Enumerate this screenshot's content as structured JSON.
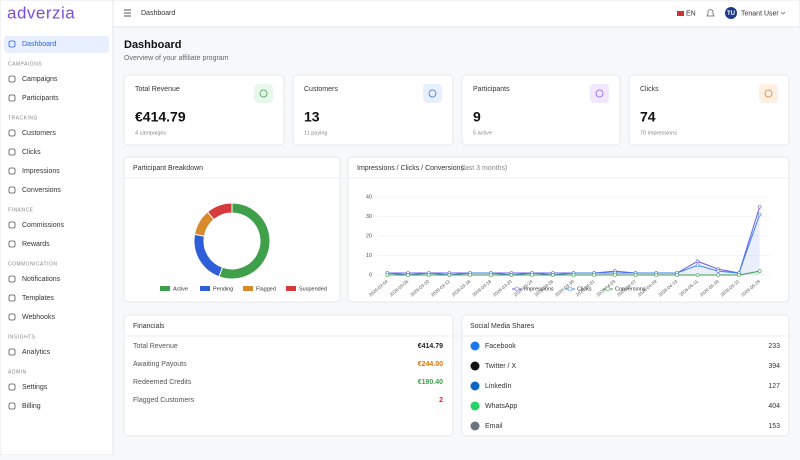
{
  "sidebar": {
    "logo": "adverzia",
    "sections": [
      {
        "items": [
          "Dashboard"
        ]
      },
      {
        "label": "CAMPAIGNS",
        "items": [
          "Campaigns",
          "Participants"
        ]
      },
      {
        "label": "TRACKING",
        "items": [
          "Customers",
          "Clicks",
          "Impressions",
          "Conversions"
        ]
      },
      {
        "label": "FINANCE",
        "items": [
          "Commissions",
          "Rewards"
        ]
      },
      {
        "label": "COMMUNICATION",
        "items": [
          "Notifications",
          "Templates",
          "Webhooks"
        ]
      },
      {
        "label": "INSIGHTS",
        "items": [
          "Analytics"
        ]
      },
      {
        "label": "ADMIN",
        "items": [
          "Settings",
          "Billing"
        ]
      }
    ]
  },
  "header": {
    "breadcrumb": "Dashboard",
    "language": "EN",
    "avatar": "TU",
    "user": "Tenant User"
  },
  "page": {
    "title": "Dashboard",
    "subtitle": "Overview of your affiliate program"
  },
  "cards": [
    {
      "label": "Total Revenue",
      "value": "€414.79",
      "note": "4 campaigns"
    },
    {
      "label": "Customers",
      "value": "13",
      "note": "11 paying"
    },
    {
      "label": "Participants",
      "value": "9",
      "note": "5 active"
    },
    {
      "label": "Clicks",
      "value": "74",
      "note": "70 impressions"
    }
  ],
  "chart_data": [
    {
      "type": "donut",
      "title": "Participant Breakdown",
      "categories": [
        "Active",
        "Pending",
        "Flagged",
        "Suspended"
      ],
      "values": [
        5,
        2,
        1,
        1
      ],
      "colors": [
        "#3f9f4a",
        "#2f5fd8",
        "#d98a2b",
        "#d63a3a"
      ],
      "legend": "bottom"
    },
    {
      "type": "line",
      "title": "Impressions / Clicks / Conversions",
      "subtitle": "(last 3 months)",
      "categories": [
        "2026-03-04",
        "2026-03-06",
        "2026-03-10",
        "2026-03-12",
        "2026-03-16",
        "2026-03-18",
        "2026-03-20",
        "2026-03-24",
        "2026-03-26",
        "2026-03-30",
        "2026-04-01",
        "2026-04-03",
        "2026-04-07",
        "2026-04-09",
        "2026-04-13",
        "2026-05-11",
        "2026-05-18",
        "2026-05-22",
        "2026-05-29"
      ],
      "series": [
        {
          "name": "Impressions",
          "color": "#6d5ce8",
          "values": [
            1,
            1,
            1,
            1,
            1,
            1,
            1,
            1,
            1,
            1,
            1,
            2,
            1,
            1,
            1,
            7,
            3,
            1,
            35
          ]
        },
        {
          "name": "Clicks",
          "color": "#3b82f6",
          "values": [
            1,
            0,
            1,
            0,
            1,
            1,
            0,
            1,
            0,
            1,
            1,
            1,
            1,
            1,
            1,
            5,
            2,
            1,
            31
          ]
        },
        {
          "name": "Conversions",
          "color": "#3f9f4a",
          "values": [
            0,
            0,
            0,
            0,
            0,
            0,
            0,
            0,
            0,
            0,
            0,
            0,
            0,
            0,
            0,
            0,
            0,
            0,
            2
          ]
        }
      ],
      "ylim": [
        0,
        40
      ],
      "yticks": [
        0,
        10,
        20,
        30,
        40
      ],
      "grid": true,
      "legend": "bottom"
    }
  ],
  "financials": {
    "title": "Financials",
    "rows": [
      {
        "label": "Total Revenue",
        "value": "€414.79",
        "color": "#222222"
      },
      {
        "label": "Awaiting Payouts",
        "value": "€244.00",
        "color": "#d97706"
      },
      {
        "label": "Redeemed Credits",
        "value": "€190.40",
        "color": "#3f9f4a"
      },
      {
        "label": "Flagged Customers",
        "value": "2",
        "color": "#dc2626"
      }
    ]
  },
  "social": {
    "title": "Social Media Shares",
    "rows": [
      {
        "label": "Facebook",
        "value": 233
      },
      {
        "label": "Twitter / X",
        "value": 394
      },
      {
        "label": "LinkedIn",
        "value": 127
      },
      {
        "label": "WhatsApp",
        "value": 404
      },
      {
        "label": "Email",
        "value": 153
      }
    ]
  }
}
